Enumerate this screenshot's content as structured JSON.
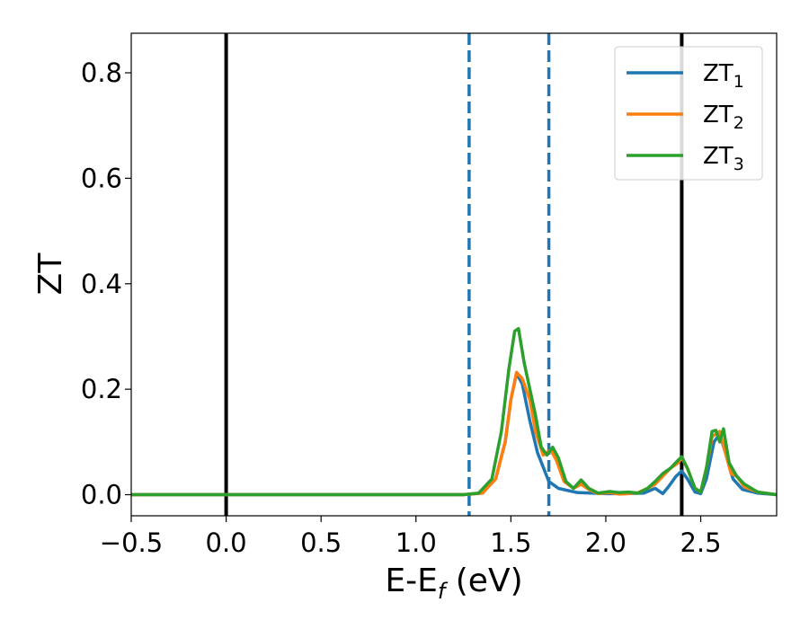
{
  "chart_data": {
    "type": "line",
    "xlabel": "E-E",
    "xlabel_sub": "f",
    "xlabel_unit": " (eV)",
    "ylabel": "ZT",
    "xlim": [
      -0.5,
      2.9
    ],
    "ylim": [
      -0.04,
      0.875
    ],
    "xticks": [
      -0.5,
      0.0,
      0.5,
      1.0,
      1.5,
      2.0,
      2.5
    ],
    "xtick_labels": [
      "−0.5",
      "0.0",
      "0.5",
      "1.0",
      "1.5",
      "2.0",
      "2.5"
    ],
    "yticks": [
      0.0,
      0.2,
      0.4,
      0.6,
      0.8
    ],
    "ytick_labels": [
      "0.0",
      "0.2",
      "0.4",
      "0.6",
      "0.8"
    ],
    "vlines": [
      {
        "x": 0.0,
        "style": "solid",
        "color": "#000000"
      },
      {
        "x": 2.4,
        "style": "solid",
        "color": "#000000"
      },
      {
        "x": 1.28,
        "style": "dashed",
        "color": "#1f77b4"
      },
      {
        "x": 1.7,
        "style": "dashed",
        "color": "#1f77b4"
      }
    ],
    "legend_position": "top-right",
    "series": [
      {
        "name": "ZT",
        "sub": "1",
        "color": "#1f77b4",
        "points": [
          [
            -0.5,
            0
          ],
          [
            1.25,
            0
          ],
          [
            1.35,
            0.003
          ],
          [
            1.42,
            0.03
          ],
          [
            1.47,
            0.1
          ],
          [
            1.5,
            0.18
          ],
          [
            1.53,
            0.23
          ],
          [
            1.56,
            0.21
          ],
          [
            1.6,
            0.14
          ],
          [
            1.64,
            0.08
          ],
          [
            1.7,
            0.025
          ],
          [
            1.75,
            0.012
          ],
          [
            1.85,
            0.004
          ],
          [
            2.0,
            0.002
          ],
          [
            2.1,
            0.002
          ],
          [
            2.2,
            0.003
          ],
          [
            2.26,
            0.012
          ],
          [
            2.3,
            0.002
          ],
          [
            2.33,
            0.015
          ],
          [
            2.37,
            0.035
          ],
          [
            2.4,
            0.045
          ],
          [
            2.43,
            0.03
          ],
          [
            2.47,
            0.005
          ],
          [
            2.5,
            0.002
          ],
          [
            2.53,
            0.03
          ],
          [
            2.57,
            0.1
          ],
          [
            2.6,
            0.115
          ],
          [
            2.63,
            0.08
          ],
          [
            2.67,
            0.03
          ],
          [
            2.72,
            0.01
          ],
          [
            2.8,
            0.003
          ],
          [
            2.9,
            0
          ]
        ]
      },
      {
        "name": "ZT",
        "sub": "2",
        "color": "#ff7f0e",
        "points": [
          [
            -0.5,
            0
          ],
          [
            1.25,
            0
          ],
          [
            1.35,
            0.003
          ],
          [
            1.42,
            0.03
          ],
          [
            1.47,
            0.1
          ],
          [
            1.5,
            0.18
          ],
          [
            1.53,
            0.232
          ],
          [
            1.56,
            0.22
          ],
          [
            1.6,
            0.18
          ],
          [
            1.63,
            0.12
          ],
          [
            1.67,
            0.075
          ],
          [
            1.71,
            0.085
          ],
          [
            1.74,
            0.065
          ],
          [
            1.78,
            0.025
          ],
          [
            1.83,
            0.012
          ],
          [
            1.87,
            0.02
          ],
          [
            1.91,
            0.01
          ],
          [
            1.96,
            0.002
          ],
          [
            2.02,
            0.004
          ],
          [
            2.07,
            0.001
          ],
          [
            2.12,
            0.002
          ],
          [
            2.17,
            0.004
          ],
          [
            2.22,
            0.012
          ],
          [
            2.26,
            0.02
          ],
          [
            2.3,
            0.035
          ],
          [
            2.34,
            0.05
          ],
          [
            2.38,
            0.06
          ],
          [
            2.4,
            0.07
          ],
          [
            2.43,
            0.05
          ],
          [
            2.47,
            0.012
          ],
          [
            2.5,
            0.005
          ],
          [
            2.53,
            0.05
          ],
          [
            2.56,
            0.11
          ],
          [
            2.6,
            0.12
          ],
          [
            2.63,
            0.08
          ],
          [
            2.66,
            0.04
          ],
          [
            2.69,
            0.035
          ],
          [
            2.73,
            0.015
          ],
          [
            2.8,
            0.005
          ],
          [
            2.9,
            0
          ]
        ]
      },
      {
        "name": "ZT",
        "sub": "3",
        "color": "#2ca02c",
        "points": [
          [
            -0.5,
            0
          ],
          [
            1.25,
            0
          ],
          [
            1.33,
            0.003
          ],
          [
            1.4,
            0.03
          ],
          [
            1.45,
            0.12
          ],
          [
            1.49,
            0.24
          ],
          [
            1.52,
            0.31
          ],
          [
            1.54,
            0.315
          ],
          [
            1.57,
            0.25
          ],
          [
            1.6,
            0.2
          ],
          [
            1.63,
            0.15
          ],
          [
            1.66,
            0.09
          ],
          [
            1.69,
            0.075
          ],
          [
            1.72,
            0.09
          ],
          [
            1.75,
            0.07
          ],
          [
            1.79,
            0.025
          ],
          [
            1.83,
            0.012
          ],
          [
            1.87,
            0.028
          ],
          [
            1.91,
            0.012
          ],
          [
            1.96,
            0.003
          ],
          [
            2.02,
            0.006
          ],
          [
            2.07,
            0.004
          ],
          [
            2.12,
            0.005
          ],
          [
            2.17,
            0.003
          ],
          [
            2.22,
            0.012
          ],
          [
            2.26,
            0.025
          ],
          [
            2.3,
            0.04
          ],
          [
            2.34,
            0.05
          ],
          [
            2.38,
            0.065
          ],
          [
            2.4,
            0.072
          ],
          [
            2.43,
            0.05
          ],
          [
            2.47,
            0.012
          ],
          [
            2.5,
            0.005
          ],
          [
            2.53,
            0.05
          ],
          [
            2.56,
            0.12
          ],
          [
            2.58,
            0.122
          ],
          [
            2.6,
            0.1
          ],
          [
            2.62,
            0.125
          ],
          [
            2.65,
            0.06
          ],
          [
            2.69,
            0.035
          ],
          [
            2.73,
            0.02
          ],
          [
            2.8,
            0.005
          ],
          [
            2.9,
            0
          ]
        ]
      }
    ]
  }
}
